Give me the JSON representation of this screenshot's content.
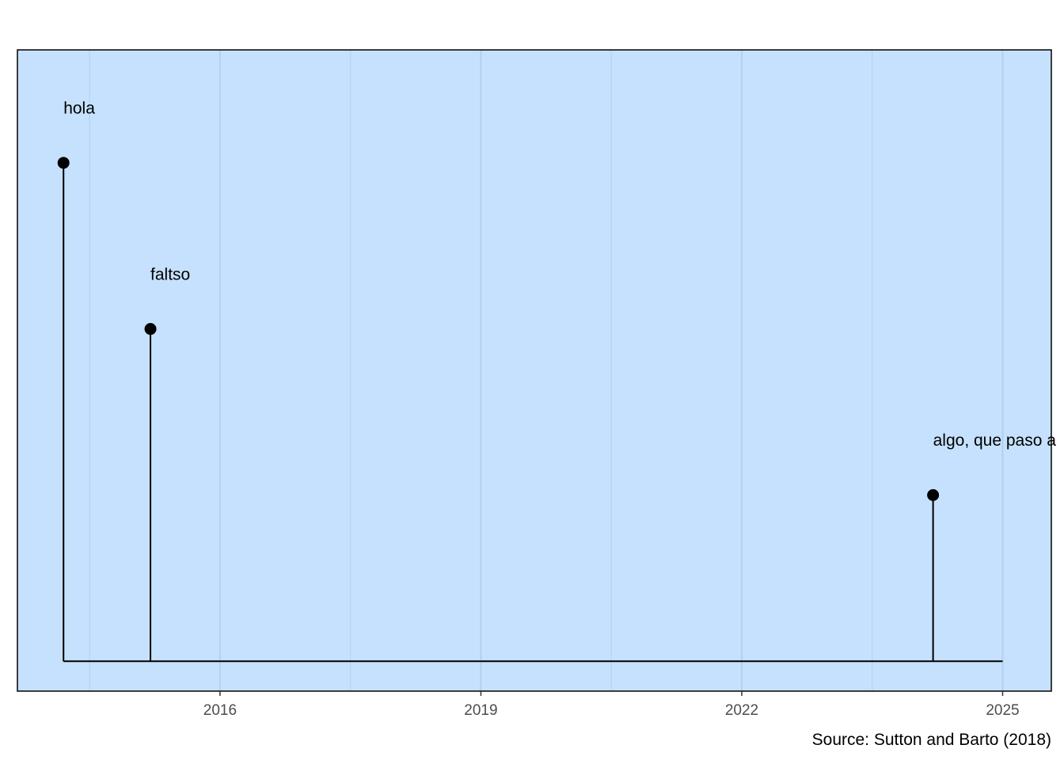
{
  "chart_data": {
    "type": "timeline",
    "title": "",
    "xlabel": "",
    "ylabel": "",
    "caption": "Source: Sutton and Barto (2018)",
    "x_ticks": [
      2016,
      2019,
      2022,
      2025
    ],
    "xlim": [
      2013.67,
      2025.56
    ],
    "ylim": [
      -0.18,
      3.68
    ],
    "grid": true,
    "background_color": "#c6e1fd",
    "grid_color": "#b5d0ee",
    "mark_color": "#000000",
    "baseline": {
      "start": 2014.2,
      "end": 2025.0
    },
    "events": [
      {
        "date": 2014.2,
        "height": 3.0,
        "label": "hola"
      },
      {
        "date": 2015.2,
        "height": 2.0,
        "label": "faltso"
      },
      {
        "date": 2024.2,
        "height": 1.0,
        "label": "algo, que paso a"
      }
    ]
  }
}
